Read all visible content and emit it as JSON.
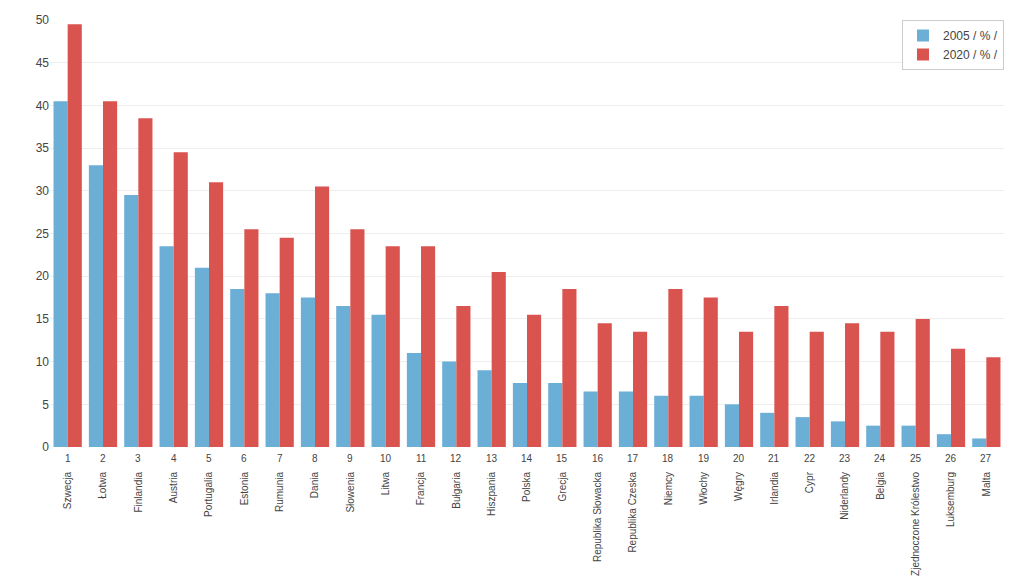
{
  "chart_data": {
    "type": "bar",
    "categories": [
      "Szwecja",
      "Łotwa",
      "Finlandia",
      "Austria",
      "Portugalia",
      "Estonia",
      "Rumunia",
      "Dania",
      "Słowenia",
      "Litwa",
      "Francja",
      "Bułgaria",
      "Hiszpania",
      "Polska",
      "Grecja",
      "Republika Słowacka",
      "Republika Czeska",
      "Niemcy",
      "Włochy",
      "Węgry",
      "Irlandia",
      "Cypr",
      "Niderlandy",
      "Belgia",
      "Zjednoczone Królestwo",
      "Luksemburg",
      "Malta"
    ],
    "xticks": [
      1,
      2,
      3,
      4,
      5,
      6,
      7,
      8,
      9,
      10,
      11,
      12,
      13,
      14,
      15,
      16,
      17,
      18,
      19,
      20,
      21,
      22,
      23,
      24,
      25,
      26,
      27
    ],
    "series": [
      {
        "name": "2005 / % /",
        "color": "#6baed6",
        "values": [
          40.5,
          33.0,
          29.5,
          23.5,
          21.0,
          18.5,
          18.0,
          17.5,
          16.5,
          15.5,
          11.0,
          10.0,
          9.0,
          7.5,
          7.5,
          6.5,
          6.5,
          6.0,
          6.0,
          5.0,
          4.0,
          3.5,
          3.0,
          2.5,
          2.5,
          1.5,
          1.0
        ]
      },
      {
        "name": "2020 / % /",
        "color": "#d9534f",
        "values": [
          49.5,
          40.5,
          38.5,
          34.5,
          31.0,
          25.5,
          24.5,
          30.5,
          25.5,
          23.5,
          23.5,
          16.5,
          20.5,
          15.5,
          18.5,
          14.5,
          13.5,
          18.5,
          17.5,
          13.5,
          16.5,
          13.5,
          14.5,
          13.5,
          15.0,
          11.5,
          10.5
        ]
      }
    ],
    "ylim": [
      0,
      50
    ],
    "yticks": [
      0,
      5,
      10,
      15,
      20,
      25,
      30,
      35,
      40,
      45,
      50
    ],
    "grid": true,
    "legend": "upper right"
  }
}
